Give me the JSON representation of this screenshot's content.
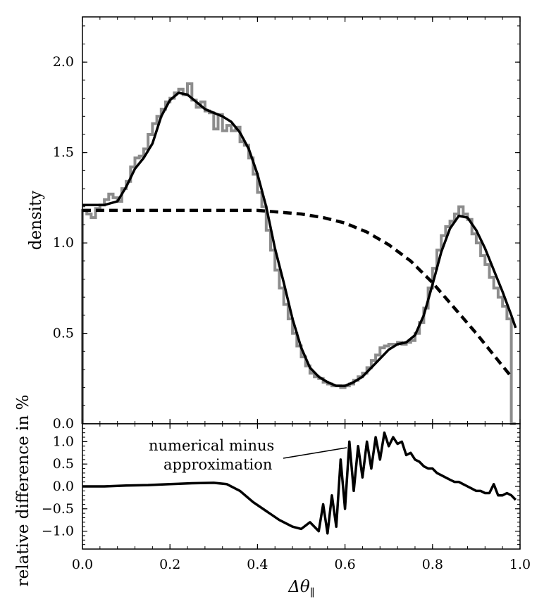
{
  "chart_data": [
    {
      "type": "line",
      "title": "",
      "xlabel": "",
      "ylabel": "density",
      "xlim": [
        0.0,
        1.0
      ],
      "ylim": [
        0.0,
        2.25
      ],
      "x_ticks": [
        0.0,
        0.2,
        0.4,
        0.6,
        0.8,
        1.0
      ],
      "y_ticks": [
        0.0,
        0.5,
        1.0,
        1.5,
        2.0
      ],
      "y_tick_labels": [
        "0.0",
        "0.5",
        "1.0",
        "1.5",
        "2.0"
      ],
      "grid": false,
      "series": [
        {
          "style": "histogram",
          "color": "#8c8c8c",
          "bin_width": 0.01,
          "x": [
            0.0,
            0.01,
            0.02,
            0.03,
            0.04,
            0.05,
            0.06,
            0.07,
            0.08,
            0.09,
            0.1,
            0.11,
            0.12,
            0.13,
            0.14,
            0.15,
            0.16,
            0.17,
            0.18,
            0.19,
            0.2,
            0.21,
            0.22,
            0.23,
            0.24,
            0.25,
            0.26,
            0.27,
            0.28,
            0.29,
            0.3,
            0.31,
            0.32,
            0.33,
            0.34,
            0.35,
            0.36,
            0.37,
            0.38,
            0.39,
            0.4,
            0.41,
            0.42,
            0.43,
            0.44,
            0.45,
            0.46,
            0.47,
            0.48,
            0.49,
            0.5,
            0.51,
            0.52,
            0.53,
            0.54,
            0.55,
            0.56,
            0.57,
            0.58,
            0.59,
            0.6,
            0.61,
            0.62,
            0.63,
            0.64,
            0.65,
            0.66,
            0.67,
            0.68,
            0.69,
            0.7,
            0.71,
            0.72,
            0.73,
            0.74,
            0.75,
            0.76,
            0.77,
            0.78,
            0.79,
            0.8,
            0.81,
            0.82,
            0.83,
            0.84,
            0.85,
            0.86,
            0.87,
            0.88,
            0.89,
            0.9,
            0.91,
            0.92,
            0.93,
            0.94,
            0.95,
            0.96,
            0.97,
            0.98
          ],
          "values": [
            1.18,
            1.16,
            1.14,
            1.19,
            1.21,
            1.24,
            1.27,
            1.25,
            1.23,
            1.3,
            1.34,
            1.42,
            1.47,
            1.48,
            1.52,
            1.6,
            1.66,
            1.7,
            1.74,
            1.78,
            1.8,
            1.83,
            1.85,
            1.82,
            1.88,
            1.79,
            1.75,
            1.78,
            1.73,
            1.72,
            1.63,
            1.71,
            1.62,
            1.65,
            1.62,
            1.64,
            1.56,
            1.54,
            1.47,
            1.38,
            1.28,
            1.2,
            1.07,
            0.96,
            0.85,
            0.75,
            0.66,
            0.58,
            0.5,
            0.43,
            0.37,
            0.32,
            0.28,
            0.26,
            0.25,
            0.23,
            0.22,
            0.21,
            0.21,
            0.2,
            0.21,
            0.22,
            0.24,
            0.26,
            0.28,
            0.31,
            0.35,
            0.38,
            0.42,
            0.43,
            0.44,
            0.44,
            0.45,
            0.44,
            0.45,
            0.46,
            0.5,
            0.56,
            0.64,
            0.75,
            0.86,
            0.96,
            1.04,
            1.09,
            1.12,
            1.16,
            1.2,
            1.16,
            1.13,
            1.05,
            1.0,
            0.93,
            0.88,
            0.81,
            0.75,
            0.7,
            0.65,
            0.58,
            0.0
          ]
        },
        {
          "style": "solid",
          "color": "#000000",
          "x": [
            0.0,
            0.02,
            0.05,
            0.08,
            0.1,
            0.12,
            0.14,
            0.16,
            0.18,
            0.2,
            0.22,
            0.24,
            0.26,
            0.28,
            0.3,
            0.32,
            0.34,
            0.36,
            0.38,
            0.4,
            0.42,
            0.44,
            0.46,
            0.48,
            0.5,
            0.52,
            0.54,
            0.56,
            0.58,
            0.6,
            0.62,
            0.64,
            0.66,
            0.68,
            0.7,
            0.72,
            0.74,
            0.76,
            0.78,
            0.8,
            0.82,
            0.84,
            0.86,
            0.88,
            0.9,
            0.92,
            0.94,
            0.96,
            0.98,
            0.99
          ],
          "y": [
            1.21,
            1.21,
            1.21,
            1.23,
            1.31,
            1.41,
            1.47,
            1.55,
            1.7,
            1.79,
            1.83,
            1.82,
            1.78,
            1.74,
            1.72,
            1.7,
            1.67,
            1.61,
            1.52,
            1.38,
            1.2,
            0.97,
            0.78,
            0.58,
            0.42,
            0.31,
            0.26,
            0.23,
            0.21,
            0.21,
            0.23,
            0.26,
            0.31,
            0.36,
            0.41,
            0.44,
            0.45,
            0.49,
            0.6,
            0.77,
            0.95,
            1.08,
            1.15,
            1.14,
            1.07,
            0.97,
            0.85,
            0.73,
            0.6,
            0.53
          ]
        },
        {
          "style": "dashed",
          "color": "#000000",
          "x": [
            0.0,
            0.1,
            0.2,
            0.3,
            0.4,
            0.45,
            0.5,
            0.55,
            0.6,
            0.65,
            0.7,
            0.75,
            0.8,
            0.85,
            0.9,
            0.95,
            0.98
          ],
          "y": [
            1.18,
            1.18,
            1.18,
            1.18,
            1.18,
            1.17,
            1.16,
            1.14,
            1.11,
            1.06,
            0.99,
            0.9,
            0.78,
            0.64,
            0.5,
            0.35,
            0.26
          ]
        }
      ]
    },
    {
      "type": "line",
      "title": "",
      "xlabel": "Δθ∥",
      "ylabel": "relative difference in %",
      "xlim": [
        0.0,
        1.0
      ],
      "ylim": [
        -1.4,
        1.4
      ],
      "x_ticks": [
        0.0,
        0.2,
        0.4,
        0.6,
        0.8,
        1.0
      ],
      "x_tick_labels": [
        "0.0",
        "0.2",
        "0.4",
        "0.6",
        "0.8",
        "1.0"
      ],
      "y_ticks": [
        -1.0,
        -0.5,
        0.0,
        0.5,
        1.0
      ],
      "y_tick_labels": [
        "−1.0",
        "−0.5",
        "0.0",
        "0.5",
        "1.0"
      ],
      "grid": false,
      "annotation": {
        "text_lines": [
          "numerical minus",
          "approximation"
        ],
        "points_to": [
          0.59,
          0.85
        ]
      },
      "series": [
        {
          "style": "solid",
          "color": "#000000",
          "x": [
            0.0,
            0.05,
            0.1,
            0.15,
            0.2,
            0.25,
            0.3,
            0.33,
            0.36,
            0.39,
            0.42,
            0.45,
            0.48,
            0.5,
            0.52,
            0.54,
            0.55,
            0.56,
            0.57,
            0.58,
            0.59,
            0.6,
            0.61,
            0.62,
            0.63,
            0.64,
            0.65,
            0.66,
            0.67,
            0.68,
            0.69,
            0.7,
            0.71,
            0.72,
            0.73,
            0.74,
            0.75,
            0.76,
            0.77,
            0.78,
            0.79,
            0.8,
            0.81,
            0.82,
            0.83,
            0.84,
            0.85,
            0.86,
            0.87,
            0.88,
            0.89,
            0.9,
            0.91,
            0.92,
            0.93,
            0.94,
            0.95,
            0.96,
            0.97,
            0.98,
            0.99
          ],
          "y": [
            0.0,
            0.0,
            0.02,
            0.03,
            0.05,
            0.07,
            0.08,
            0.05,
            -0.1,
            -0.35,
            -0.55,
            -0.75,
            -0.9,
            -0.95,
            -0.8,
            -1.0,
            -0.4,
            -1.05,
            -0.2,
            -0.9,
            0.6,
            -0.5,
            1.0,
            -0.1,
            0.9,
            0.2,
            1.0,
            0.4,
            1.1,
            0.6,
            1.2,
            0.9,
            1.1,
            0.95,
            1.0,
            0.7,
            0.75,
            0.6,
            0.55,
            0.45,
            0.4,
            0.4,
            0.3,
            0.25,
            0.2,
            0.15,
            0.1,
            0.1,
            0.05,
            0.0,
            -0.05,
            -0.1,
            -0.1,
            -0.15,
            -0.15,
            0.05,
            -0.2,
            -0.2,
            -0.15,
            -0.2,
            -0.3
          ]
        }
      ]
    }
  ]
}
